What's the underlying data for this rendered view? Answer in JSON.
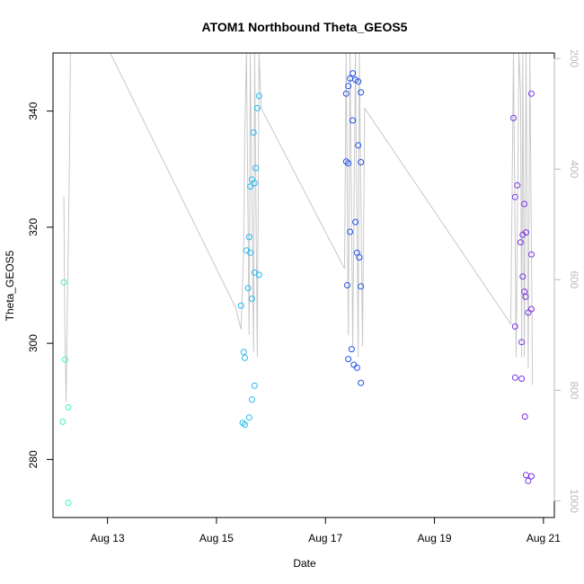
{
  "chart_data": {
    "type": "scatter",
    "title": "ATOM1 Northbound Theta_GEOS5",
    "xlabel": "Date",
    "ylabel": "Theta_GEOS5",
    "x_ticks": [
      "Aug 13",
      "Aug 15",
      "Aug 17",
      "Aug 19",
      "Aug 21"
    ],
    "x_tick_days": [
      13,
      15,
      17,
      19,
      21
    ],
    "xlim": [
      12.0,
      21.2
    ],
    "y_ticks": [
      280,
      300,
      320,
      340
    ],
    "ylim": [
      270,
      350
    ],
    "y2_ticks": [
      200,
      400,
      600,
      800,
      1000
    ],
    "y2_direction": "reversed",
    "y2lim": [
      1030,
      190
    ],
    "grid": false,
    "series": [
      {
        "color": "#40f0c0",
        "points": [
          [
            12.2,
            310.5
          ],
          [
            12.22,
            297.2
          ],
          [
            12.18,
            286.5
          ],
          [
            12.28,
            289.0
          ],
          [
            12.28,
            272.5
          ]
        ]
      },
      {
        "color": "#22b8f0",
        "points": [
          [
            15.45,
            306.5
          ],
          [
            15.5,
            298.5
          ],
          [
            15.52,
            297.5
          ],
          [
            15.48,
            286.3
          ],
          [
            15.52,
            286.0
          ],
          [
            15.6,
            287.2
          ],
          [
            15.65,
            290.3
          ],
          [
            15.7,
            292.7
          ],
          [
            15.55,
            316.0
          ],
          [
            15.6,
            318.3
          ],
          [
            15.62,
            315.6
          ],
          [
            15.58,
            309.5
          ],
          [
            15.65,
            307.7
          ],
          [
            15.7,
            312.2
          ],
          [
            15.78,
            311.8
          ],
          [
            15.62,
            327.0
          ],
          [
            15.65,
            328.2
          ],
          [
            15.7,
            327.6
          ],
          [
            15.72,
            330.2
          ],
          [
            15.68,
            336.3
          ],
          [
            15.75,
            340.5
          ],
          [
            15.78,
            342.6
          ]
        ]
      },
      {
        "color": "#2050e8",
        "points": [
          [
            17.38,
            343.0
          ],
          [
            17.42,
            344.3
          ],
          [
            17.45,
            345.6
          ],
          [
            17.5,
            346.5
          ],
          [
            17.55,
            345.4
          ],
          [
            17.6,
            345.1
          ],
          [
            17.65,
            343.2
          ],
          [
            17.5,
            338.4
          ],
          [
            17.6,
            334.1
          ],
          [
            17.38,
            331.3
          ],
          [
            17.42,
            331.0
          ],
          [
            17.65,
            331.2
          ],
          [
            17.55,
            320.9
          ],
          [
            17.45,
            319.2
          ],
          [
            17.58,
            315.6
          ],
          [
            17.62,
            314.8
          ],
          [
            17.4,
            310.0
          ],
          [
            17.65,
            309.8
          ],
          [
            17.48,
            299.0
          ],
          [
            17.42,
            297.3
          ],
          [
            17.52,
            296.3
          ],
          [
            17.58,
            295.8
          ],
          [
            17.65,
            293.2
          ]
        ]
      },
      {
        "color": "#7a30e8",
        "points": [
          [
            20.45,
            338.8
          ],
          [
            20.52,
            327.2
          ],
          [
            20.48,
            325.2
          ],
          [
            20.65,
            324.0
          ],
          [
            20.62,
            318.7
          ],
          [
            20.58,
            317.4
          ],
          [
            20.68,
            319.1
          ],
          [
            20.78,
            315.3
          ],
          [
            20.62,
            311.5
          ],
          [
            20.65,
            308.9
          ],
          [
            20.67,
            308.0
          ],
          [
            20.72,
            305.3
          ],
          [
            20.78,
            305.9
          ],
          [
            20.48,
            302.9
          ],
          [
            20.6,
            300.2
          ],
          [
            20.48,
            294.1
          ],
          [
            20.6,
            293.9
          ],
          [
            20.66,
            287.4
          ],
          [
            20.68,
            277.3
          ],
          [
            20.78,
            277.1
          ],
          [
            20.72,
            276.3
          ],
          [
            20.78,
            343.0
          ]
        ]
      }
    ],
    "pressure_trace": {
      "color": "#c8c8c8",
      "points": [
        [
          12.2,
          450
        ],
        [
          12.22,
          700
        ],
        [
          12.24,
          820
        ],
        [
          12.3,
          400
        ],
        [
          12.32,
          190
        ],
        [
          13.05,
          190
        ],
        [
          15.35,
          650
        ],
        [
          15.45,
          690
        ],
        [
          15.5,
          540
        ],
        [
          15.52,
          330
        ],
        [
          15.55,
          190
        ],
        [
          15.6,
          700
        ],
        [
          15.62,
          190
        ],
        [
          15.68,
          730
        ],
        [
          15.7,
          190
        ],
        [
          15.75,
          740
        ],
        [
          15.78,
          190
        ],
        [
          15.82,
          290
        ],
        [
          17.35,
          580
        ],
        [
          17.38,
          190
        ],
        [
          17.42,
          700
        ],
        [
          17.45,
          190
        ],
        [
          17.5,
          720
        ],
        [
          17.55,
          190
        ],
        [
          17.6,
          740
        ],
        [
          17.62,
          190
        ],
        [
          17.68,
          720
        ],
        [
          17.72,
          290
        ],
        [
          20.4,
          680
        ],
        [
          20.45,
          190
        ],
        [
          20.5,
          740
        ],
        [
          20.55,
          190
        ],
        [
          20.58,
          260
        ],
        [
          20.6,
          740
        ],
        [
          20.62,
          190
        ],
        [
          20.65,
          740
        ],
        [
          20.68,
          190
        ],
        [
          20.72,
          760
        ],
        [
          20.75,
          190
        ],
        [
          20.8,
          790
        ]
      ]
    }
  }
}
